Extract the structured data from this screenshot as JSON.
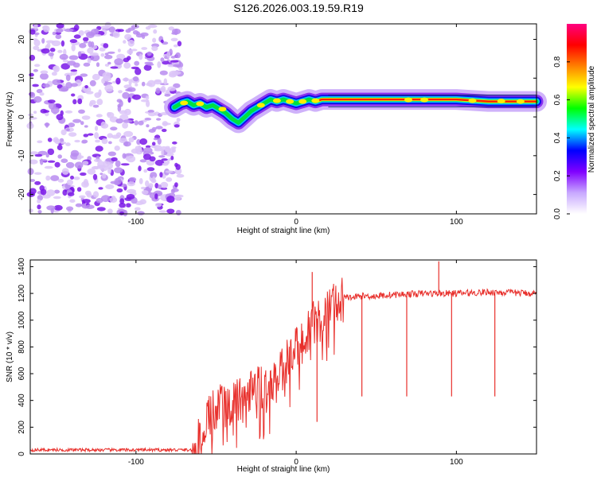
{
  "title": "S126.2026.003.19.59.R19",
  "chart_data": [
    {
      "type": "heatmap",
      "xlabel": "Height of straight line (km)",
      "ylabel": "Frequency (Hz)",
      "xlim": [
        -166,
        150
      ],
      "ylim": [
        -25,
        24
      ],
      "xticks": [
        -100,
        0,
        100
      ],
      "yticks": [
        -20,
        -10,
        0,
        10,
        20
      ],
      "colorbar": {
        "label": "Normalized spectral amplitude",
        "range": [
          0,
          1
        ],
        "ticks": [
          0,
          0.2,
          0.4,
          0.6,
          0.8
        ],
        "tick_labels": [
          "0.0",
          "0.2",
          "0.4",
          "0.6",
          "0.8"
        ],
        "colors": [
          "#ffffff",
          "#c8a8ff",
          "#8000ff",
          "#0000ff",
          "#00ffff",
          "#00ff00",
          "#ffff00",
          "#ff8000",
          "#ff0000",
          "#ff0080"
        ]
      },
      "noise_region": {
        "x": [
          -166,
          -72
        ],
        "y": [
          -25,
          24
        ]
      },
      "ridge": {
        "x": [
          -76,
          -72,
          -68,
          -64,
          -60,
          -56,
          -52,
          -48,
          -44,
          -40,
          -36,
          -32,
          -28,
          -24,
          -20,
          -16,
          -12,
          -8,
          -4,
          0,
          4,
          8,
          12,
          16,
          20,
          30,
          40,
          60,
          80,
          100,
          120,
          150
        ],
        "y": [
          2.5,
          3.5,
          4.0,
          3.0,
          3.5,
          2.5,
          3.0,
          2.0,
          1.0,
          -0.5,
          -1.5,
          0.0,
          1.5,
          2.5,
          3.5,
          4.5,
          4.0,
          4.5,
          4.0,
          3.5,
          4.0,
          4.5,
          4.0,
          4.5,
          4.5,
          4.5,
          4.5,
          4.5,
          4.5,
          4.5,
          4.0,
          4.0
        ]
      }
    },
    {
      "type": "line",
      "xlabel": "Height of straight line (km)",
      "ylabel": "SNR (10 * v/v)",
      "xlim": [
        -166,
        150
      ],
      "ylim": [
        0,
        1450
      ],
      "xticks": [
        -100,
        0,
        100
      ],
      "yticks": [
        0,
        200,
        400,
        600,
        800,
        1000,
        1200,
        1400
      ],
      "color": "#e8302c",
      "series": [
        {
          "x": [
            -166,
            -140,
            -120,
            -100,
            -80,
            -65,
            -60,
            -56,
            -52,
            -48,
            -44,
            -40,
            -36,
            -32,
            -28,
            -24,
            -20,
            -16,
            -12,
            -8,
            -4,
            0,
            4,
            8,
            12,
            16,
            20,
            24,
            28,
            32,
            36,
            40,
            50,
            60,
            80,
            100,
            120,
            150
          ],
          "y": [
            30,
            30,
            30,
            30,
            30,
            30,
            120,
            250,
            300,
            350,
            320,
            380,
            400,
            350,
            450,
            500,
            450,
            550,
            600,
            650,
            700,
            800,
            850,
            900,
            1000,
            1050,
            1100,
            1100,
            1150,
            1170,
            1170,
            1180,
            1180,
            1190,
            1200,
            1200,
            1210,
            1200
          ]
        }
      ],
      "dips": [
        {
          "x": 10,
          "y": 1360
        },
        {
          "x": 13,
          "y": 240
        },
        {
          "x": 41,
          "y": 430
        },
        {
          "x": 69,
          "y": 430
        },
        {
          "x": 89,
          "y": 1440
        },
        {
          "x": 97,
          "y": 430
        },
        {
          "x": 124,
          "y": 430
        }
      ]
    }
  ]
}
